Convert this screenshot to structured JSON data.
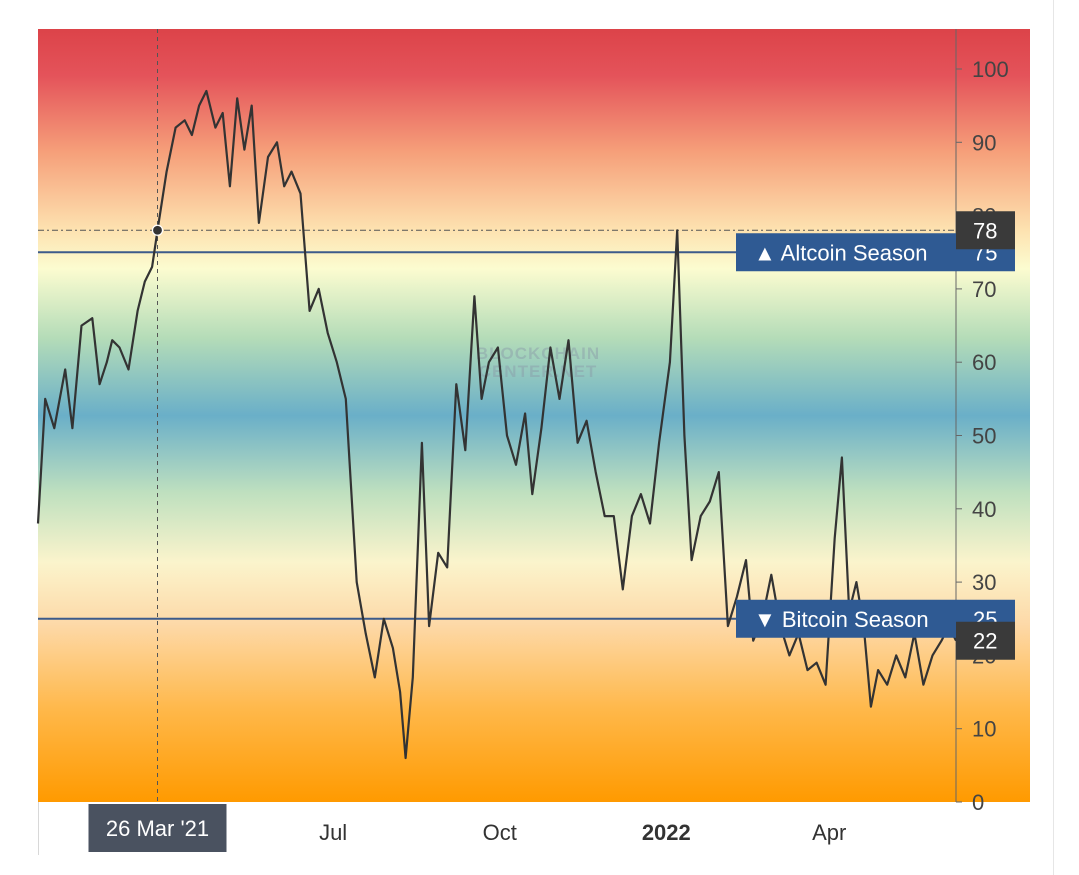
{
  "colors": {
    "line": "#333333",
    "threshold_line": "#3d5a8a",
    "season_badge": "#2f5a93",
    "value_badge": "#3a3a3a",
    "date_badge": "#4a5260",
    "bg_top": "#dc4349",
    "bg_mid": "#6aafc8",
    "bg_bottom": "#ff9a00"
  },
  "watermark": {
    "line1": "BLOCKCHAIN",
    "line2": "CENTER.NET"
  },
  "chart_data": {
    "type": "line",
    "title": "",
    "xlabel": "",
    "ylabel": "",
    "ylim": [
      0,
      105
    ],
    "y_ticks": [
      0,
      10,
      20,
      30,
      40,
      50,
      60,
      70,
      80,
      90,
      100
    ],
    "x_ticks": [
      {
        "label": "Jul",
        "date": "2021-07-01",
        "bold": false
      },
      {
        "label": "Oct",
        "date": "2021-10-01",
        "bold": false
      },
      {
        "label": "2022",
        "date": "2022-01-01",
        "bold": true
      },
      {
        "label": "Apr",
        "date": "2022-04-01",
        "bold": false
      }
    ],
    "xlim": [
      "2021-01-19",
      "2022-06-10"
    ],
    "thresholds": [
      {
        "name": "altcoin_season",
        "label": "▲ Altcoin Season",
        "value": "75",
        "y": 75
      },
      {
        "name": "bitcoin_season",
        "label": "▼ Bitcoin Season",
        "value": "25",
        "y": 25
      }
    ],
    "crosshair": {
      "date": "2021-03-26",
      "date_label": "26 Mar '21",
      "value": 78,
      "value_label": "78"
    },
    "last_value": {
      "value": 22,
      "label": "22"
    },
    "series": [
      {
        "x": [
          "2021-01-19",
          "2021-01-23",
          "2021-01-28",
          "2021-02-03",
          "2021-02-07",
          "2021-02-12",
          "2021-02-18",
          "2021-02-22",
          "2021-02-26",
          "2021-03-01",
          "2021-03-05",
          "2021-03-10",
          "2021-03-15",
          "2021-03-19",
          "2021-03-23",
          "2021-03-26",
          "2021-03-31",
          "2021-04-05",
          "2021-04-10",
          "2021-04-14",
          "2021-04-18",
          "2021-04-22",
          "2021-04-27",
          "2021-05-01",
          "2021-05-05",
          "2021-05-09",
          "2021-05-13",
          "2021-05-17",
          "2021-05-21",
          "2021-05-26",
          "2021-05-31",
          "2021-06-04",
          "2021-06-08",
          "2021-06-13",
          "2021-06-18",
          "2021-06-23",
          "2021-06-28",
          "2021-07-03",
          "2021-07-08",
          "2021-07-14",
          "2021-07-19",
          "2021-07-24",
          "2021-07-29",
          "2021-08-03",
          "2021-08-07",
          "2021-08-10",
          "2021-08-14",
          "2021-08-19",
          "2021-08-23",
          "2021-08-28",
          "2021-09-02",
          "2021-09-07",
          "2021-09-12",
          "2021-09-17",
          "2021-09-21",
          "2021-09-25",
          "2021-09-30",
          "2021-10-05",
          "2021-10-10",
          "2021-10-15",
          "2021-10-19",
          "2021-10-24",
          "2021-10-29",
          "2021-11-03",
          "2021-11-08",
          "2021-11-13",
          "2021-11-18",
          "2021-11-23",
          "2021-11-28",
          "2021-12-03",
          "2021-12-08",
          "2021-12-13",
          "2021-12-18",
          "2021-12-23",
          "2021-12-28",
          "2022-01-03",
          "2022-01-07",
          "2022-01-11",
          "2022-01-15",
          "2022-01-20",
          "2022-01-25",
          "2022-01-30",
          "2022-02-04",
          "2022-02-09",
          "2022-02-14",
          "2022-02-18",
          "2022-02-23",
          "2022-02-28",
          "2022-03-05",
          "2022-03-10",
          "2022-03-15",
          "2022-03-20",
          "2022-03-25",
          "2022-03-30",
          "2022-04-04",
          "2022-04-08",
          "2022-04-12",
          "2022-04-16",
          "2022-04-20",
          "2022-04-24",
          "2022-04-28",
          "2022-05-03",
          "2022-05-08",
          "2022-05-13",
          "2022-05-18",
          "2022-05-23",
          "2022-05-28",
          "2022-06-02",
          "2022-06-06",
          "2022-06-10"
        ],
        "values": [
          38,
          55,
          51,
          59,
          51,
          65,
          66,
          57,
          60,
          63,
          62,
          59,
          67,
          71,
          73,
          78,
          86,
          92,
          93,
          91,
          95,
          97,
          92,
          94,
          84,
          96,
          89,
          95,
          79,
          88,
          90,
          84,
          86,
          83,
          67,
          70,
          64,
          60,
          55,
          30,
          23,
          17,
          25,
          21,
          15,
          6,
          17,
          49,
          24,
          34,
          32,
          57,
          48,
          69,
          55,
          60,
          62,
          50,
          46,
          53,
          42,
          51,
          62,
          55,
          63,
          49,
          52,
          45,
          39,
          39,
          29,
          39,
          42,
          38,
          49,
          60,
          78,
          50,
          33,
          39,
          41,
          45,
          24,
          28,
          33,
          22,
          25,
          31,
          24,
          20,
          23,
          18,
          19,
          16,
          36,
          47,
          26,
          30,
          24,
          13,
          18,
          16,
          20,
          17,
          23,
          16,
          20,
          22,
          24,
          22
        ]
      }
    ]
  }
}
